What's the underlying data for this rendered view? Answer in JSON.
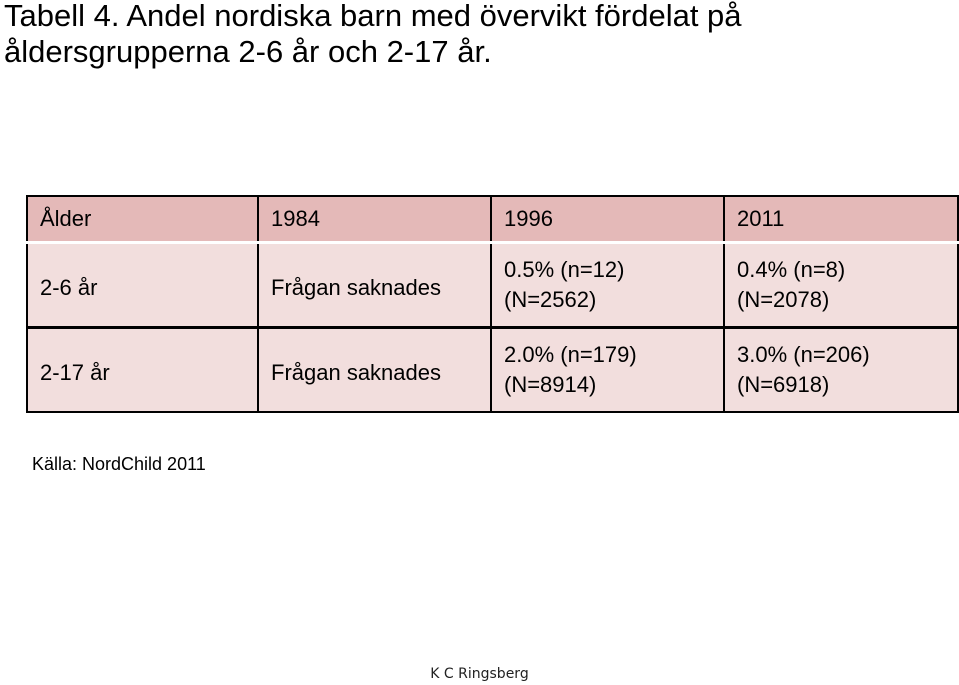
{
  "title": {
    "line1": "Tabell 4. Andel nordiska barn med övervikt  fördelat på",
    "line2": "åldersgrupperna 2-6 år och 2-17 år."
  },
  "table": {
    "columns": [
      "Ålder",
      "1984",
      "1996",
      "2011"
    ],
    "rows": [
      {
        "age": "2-6 år",
        "y1984": "Frågan saknades",
        "y1996": {
          "value": "0.5% (n=12)",
          "total": "(N=2562)"
        },
        "y2011": {
          "value": "0.4% (n=8)",
          "total": "(N=2078)"
        }
      },
      {
        "age": "2-17 år",
        "y1984": "Frågan saknades",
        "y1996": {
          "value": "2.0% (n=179)",
          "total": "(N=8914)"
        },
        "y2011": {
          "value": "3.0% (n=206)",
          "total": "(N=6918)"
        }
      }
    ]
  },
  "source": "Källa: NordChild 2011",
  "footer": "K C Ringsberg",
  "colors": {
    "header_bg": "#e4b9b8",
    "cell_bg": "#f2dedd",
    "border": "#000000"
  }
}
